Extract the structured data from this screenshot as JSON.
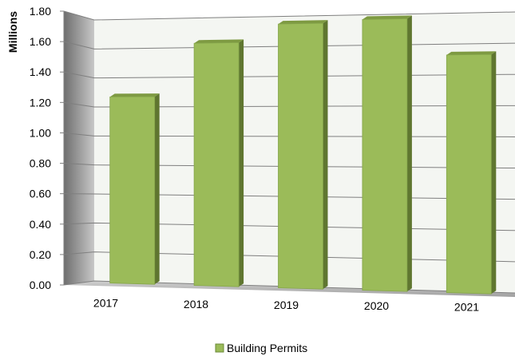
{
  "chart_data": {
    "type": "bar",
    "style": "3d-perspective",
    "categories": [
      "2017",
      "2018",
      "2019",
      "2020",
      "2021"
    ],
    "series": [
      {
        "name": "Building Permits",
        "values": [
          1.28,
          1.64,
          1.76,
          1.78,
          1.54
        ]
      }
    ],
    "ylabel": "Millions",
    "ylim": [
      0,
      1.8
    ],
    "yticks": [
      0.0,
      0.2,
      0.4,
      0.6,
      0.8,
      1.0,
      1.2,
      1.4,
      1.6,
      1.8
    ],
    "ytick_labels": [
      "0.00",
      "0.20",
      "0.40",
      "0.60",
      "0.80",
      "1.00",
      "1.20",
      "1.40",
      "1.60",
      "1.80"
    ],
    "grid": true,
    "legend_position": "bottom-center",
    "colors": {
      "bar_front": "#9bbb59",
      "bar_side": "#5f7630",
      "bar_top": "#7e9a42",
      "back_wall": "#f4f6f2",
      "side_wall": "#8f8f8f",
      "floor": "#a6a6a6",
      "gridline": "#7f7f7f"
    }
  }
}
